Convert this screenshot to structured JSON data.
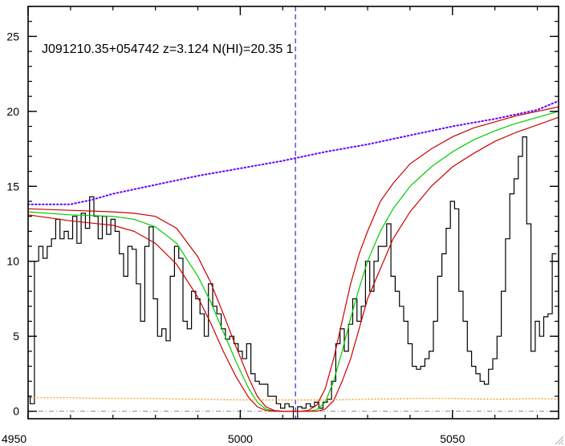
{
  "chart_data": {
    "type": "line",
    "title": "J091210.35+054742 z=3.124 N(HI)=20.35 1",
    "xlabel": "",
    "ylabel": "",
    "xlim": [
      4950,
      5075
    ],
    "ylim": [
      -0.5,
      27
    ],
    "x_ticks": [
      4950,
      5000,
      5050
    ],
    "y_ticks": [
      0,
      5,
      10,
      15,
      20,
      25
    ],
    "x_minor_step": 10,
    "y_minor_step": 1,
    "grid": false,
    "vline_x": 5013,
    "colors": {
      "flux": "#000000",
      "fit": "#00cc00",
      "fit_bounds": "#cc0000",
      "continuum": "#6600ff",
      "error": "#ff8800",
      "vline": "#0000cc",
      "zero": "#888888"
    },
    "series": [
      {
        "key": "flux",
        "style": "step",
        "x": [
          4950,
          4951,
          4952,
          4953,
          4954,
          4955,
          4956,
          4957,
          4958,
          4959,
          4960,
          4961,
          4962,
          4963,
          4964,
          4965,
          4966,
          4967,
          4968,
          4969,
          4970,
          4971,
          4972,
          4973,
          4974,
          4975,
          4976,
          4977,
          4978,
          4979,
          4980,
          4981,
          4982,
          4983,
          4984,
          4985,
          4986,
          4987,
          4988,
          4989,
          4990,
          4991,
          4992,
          4993,
          4994,
          4995,
          4996,
          4997,
          4998,
          4999,
          5000,
          5001,
          5002,
          5003,
          5004,
          5005,
          5006,
          5007,
          5008,
          5009,
          5010,
          5011,
          5012,
          5013,
          5014,
          5015,
          5016,
          5017,
          5018,
          5019,
          5020,
          5021,
          5022,
          5023,
          5024,
          5025,
          5026,
          5027,
          5028,
          5029,
          5030,
          5031,
          5032,
          5033,
          5034,
          5035,
          5036,
          5037,
          5038,
          5039,
          5040,
          5041,
          5042,
          5043,
          5044,
          5045,
          5046,
          5047,
          5048,
          5049,
          5050,
          5051,
          5052,
          5053,
          5054,
          5055,
          5056,
          5057,
          5058,
          5059,
          5060,
          5061,
          5062,
          5063,
          5064,
          5065,
          5066,
          5067,
          5068,
          5069,
          5070,
          5071,
          5072,
          5073,
          5074
        ],
        "y": [
          1,
          0.5,
          10,
          11,
          10.2,
          11,
          11.5,
          12.8,
          11.5,
          12,
          11.5,
          13,
          11.2,
          13.2,
          12.2,
          14.3,
          13,
          11.5,
          13,
          11.8,
          12.8,
          12,
          10.5,
          9,
          11,
          10.8,
          8.5,
          6,
          11,
          12.3,
          7.5,
          5,
          5.5,
          4.7,
          9,
          11,
          10.2,
          6,
          5.5,
          8,
          7.5,
          6.5,
          5,
          8.5,
          7,
          6.5,
          5.5,
          4.8,
          5,
          4.5,
          4,
          3.5,
          4.5,
          2.5,
          2,
          1.8,
          1.8,
          1,
          1,
          0.5,
          0.2,
          0.5,
          0.3,
          -0.5,
          0.3,
          0.2,
          0.5,
          0.3,
          0.6,
          0.2,
          0.6,
          0.8,
          2,
          4.5,
          5.5,
          4,
          5.8,
          7.5,
          6,
          7,
          10,
          8,
          10,
          11,
          11,
          12.5,
          9,
          8,
          7,
          6,
          4.5,
          3,
          2.8,
          3,
          3.5,
          4,
          6,
          9,
          10.5,
          12.2,
          14,
          13.5,
          8,
          6,
          4,
          3,
          2.5,
          2,
          1.8,
          2.8,
          3.5,
          5,
          8,
          11.5,
          14.5,
          15.5,
          17,
          18.3,
          12.5,
          4,
          6,
          5,
          6.3,
          6.5,
          10.5
        ]
      },
      {
        "key": "fit",
        "style": "line",
        "x": [
          4950,
          4960,
          4970,
          4975,
          4980,
          4985,
          4990,
          4993,
          4996,
          4999,
          5002,
          5004,
          5006,
          5008,
          5010,
          5012,
          5014,
          5016,
          5018,
          5020,
          5022,
          5024,
          5026,
          5028,
          5030,
          5033,
          5036,
          5040,
          5045,
          5050,
          5055,
          5060,
          5065,
          5070,
          5075
        ],
        "y": [
          13.3,
          13.1,
          13,
          12.8,
          12.3,
          11.2,
          9,
          7.3,
          5.3,
          3.3,
          1.5,
          0.6,
          0.15,
          0.02,
          0,
          0,
          0,
          0,
          0.1,
          0.6,
          2,
          4,
          6.2,
          8.2,
          10,
          12,
          13.5,
          15,
          16.3,
          17.3,
          18.1,
          18.7,
          19.2,
          19.6,
          20
        ]
      },
      {
        "key": "fit_upper",
        "style": "line",
        "x": [
          4950,
          4960,
          4970,
          4975,
          4980,
          4985,
          4990,
          4993,
          4996,
          4999,
          5002,
          5004,
          5006,
          5008,
          5010,
          5012,
          5014,
          5016,
          5018,
          5020,
          5022,
          5024,
          5026,
          5028,
          5030,
          5033,
          5036,
          5040,
          5045,
          5050,
          5055,
          5060,
          5065,
          5070,
          5075
        ],
        "y": [
          13.5,
          13.4,
          13.3,
          13.2,
          13,
          12.2,
          10.3,
          8.6,
          6.5,
          4.3,
          2.2,
          1,
          0.3,
          0.05,
          0,
          0,
          0,
          0.05,
          0.4,
          1.5,
          3.5,
          6,
          8.5,
          10.5,
          12,
          14,
          15.2,
          16.5,
          17.5,
          18.3,
          18.9,
          19.3,
          19.7,
          20,
          20.3
        ]
      },
      {
        "key": "fit_lower",
        "style": "line",
        "x": [
          4950,
          4960,
          4970,
          4975,
          4980,
          4985,
          4990,
          4993,
          4996,
          4999,
          5002,
          5004,
          5006,
          5008,
          5010,
          5012,
          5014,
          5016,
          5018,
          5020,
          5022,
          5024,
          5026,
          5028,
          5030,
          5033,
          5036,
          5040,
          5045,
          5050,
          5055,
          5060,
          5065,
          5070,
          5075
        ],
        "y": [
          13.1,
          12.7,
          12.4,
          12,
          11.2,
          9.8,
          7.6,
          5.9,
          4,
          2.3,
          0.9,
          0.3,
          0.05,
          0,
          0,
          0,
          0,
          0,
          0,
          0.15,
          0.7,
          2,
          3.5,
          5.5,
          7.5,
          9.5,
          11.5,
          13.3,
          15,
          16.3,
          17.2,
          18,
          18.6,
          19.1,
          19.6
        ]
      },
      {
        "key": "continuum",
        "style": "dotted",
        "x": [
          4950,
          4955,
          4960,
          4965,
          4970,
          4980,
          4990,
          5000,
          5010,
          5020,
          5030,
          5040,
          5050,
          5060,
          5070,
          5075
        ],
        "y": [
          13.8,
          13.8,
          13.8,
          14.1,
          14.5,
          15.1,
          15.7,
          16.2,
          16.7,
          17.3,
          17.8,
          18.4,
          19,
          19.5,
          20.1,
          20.7
        ]
      },
      {
        "key": "error",
        "style": "dotted",
        "x": [
          4950,
          4960,
          4970,
          4980,
          4990,
          5000,
          5010,
          5020,
          5030,
          5040,
          5050,
          5060,
          5070,
          5075
        ],
        "y": [
          0.9,
          0.9,
          0.85,
          0.85,
          0.8,
          0.75,
          0.75,
          0.75,
          0.8,
          0.85,
          0.85,
          0.8,
          0.85,
          0.8
        ]
      }
    ]
  }
}
